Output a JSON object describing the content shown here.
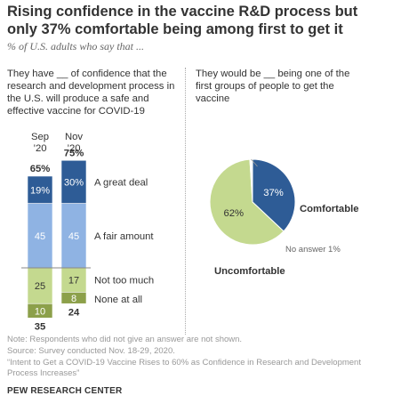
{
  "title": "Rising confidence in the vaccine R&D process but only 37% comfortable being among first to get it",
  "subtitle": "% of U.S. adults who say that ...",
  "left_panel": {
    "prompt": "They have __ of confidence that the research and development process in the U.S. will produce a safe and effective vaccine for COVID-19"
  },
  "right_panel": {
    "prompt": "They would be __ being one of the first groups of people to get the vaccine"
  },
  "notes": {
    "note": "Note: Respondents who did not give an answer are not shown.",
    "source": "Source: Survey conducted Nov. 18-29, 2020.",
    "report": "“Intent to Get a COVID-19 Vaccine Rises to 60% as Confidence in Research and Development Process Increases”",
    "org": "PEW RESEARCH CENTER"
  },
  "colors": {
    "dark_blue": "#2e5c96",
    "light_blue": "#8fb3e3",
    "light_green": "#c4d98f",
    "dark_green": "#8ca04a",
    "text": "#333333",
    "muted": "#999999"
  },
  "chart_data": [
    {
      "type": "bar",
      "stacked": true,
      "categories": [
        "Sep\n'20",
        "Nov\n'20"
      ],
      "category_labels": [
        [
          "Sep",
          "’20"
        ],
        [
          "Nov",
          "’20"
        ]
      ],
      "series": [
        {
          "name": "A great deal",
          "values": [
            19,
            30
          ],
          "color": "#2e5c96"
        },
        {
          "name": "A fair amount",
          "values": [
            45,
            45
          ],
          "color": "#8fb3e3"
        },
        {
          "name": "Not too much",
          "values": [
            25,
            17
          ],
          "color": "#c4d98f"
        },
        {
          "name": "None at all",
          "values": [
            10,
            8
          ],
          "color": "#8ca04a"
        }
      ],
      "totals_top": [
        "65%",
        "75%"
      ],
      "totals_bottom": [
        "35",
        "24"
      ],
      "value_labels": [
        [
          "19%",
          "45",
          "25",
          "10"
        ],
        [
          "30%",
          "45",
          "17",
          "8"
        ]
      ]
    },
    {
      "type": "pie",
      "slices": [
        {
          "name": "Comfortable",
          "value": 37,
          "label": "37%",
          "color": "#2e5c96"
        },
        {
          "name": "Uncomfortable",
          "value": 62,
          "label": "62%",
          "color": "#c4d98f"
        },
        {
          "name": "No answer",
          "value": 1,
          "label": "No answer 1%",
          "color": "#ffffff"
        }
      ]
    }
  ]
}
